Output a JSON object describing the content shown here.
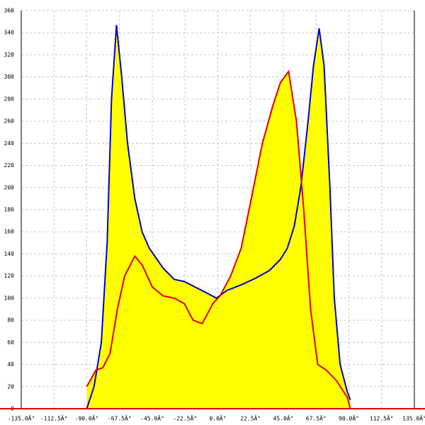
{
  "chart_data": {
    "type": "area",
    "xlim": [
      -135,
      135
    ],
    "ylim": [
      0,
      360
    ],
    "xticks": [
      {
        "value": -135,
        "label": "-135.0Â°"
      },
      {
        "value": -112.5,
        "label": "-112.5Â°"
      },
      {
        "value": -90,
        "label": "-90.0Â°"
      },
      {
        "value": -67.5,
        "label": "-67.5Â°"
      },
      {
        "value": -45,
        "label": "-45.0Â°"
      },
      {
        "value": -22.5,
        "label": "-22.5Â°"
      },
      {
        "value": 0,
        "label": "0.0Â°"
      },
      {
        "value": 22.5,
        "label": "22.5Â°"
      },
      {
        "value": 45,
        "label": "45.0Â°"
      },
      {
        "value": 67.5,
        "label": "67.5Â°"
      },
      {
        "value": 90,
        "label": "90.0Â°"
      },
      {
        "value": 112.5,
        "label": "112.5Â°"
      },
      {
        "value": 135,
        "label": "135.0Â°"
      }
    ],
    "yticks": [
      0,
      20,
      40,
      60,
      80,
      100,
      120,
      140,
      160,
      180,
      200,
      220,
      240,
      260,
      280,
      300,
      320,
      340,
      360
    ],
    "grid": true,
    "fill": "#ffff00",
    "series": [
      {
        "color": "#0000cc",
        "x": [
          -90,
          -85,
          -80,
          -76,
          -73,
          -69.6,
          -66,
          -62,
          -57,
          -52,
          -47,
          -37.5,
          -30,
          -23,
          -15.6,
          -8,
          -1,
          6.3,
          16,
          26,
          35.5,
          43,
          47.7,
          52.5,
          57,
          62,
          65.7,
          69.6,
          73,
          77,
          80,
          84,
          89,
          91
        ],
        "values": [
          0,
          20,
          60,
          150,
          280,
          347,
          300,
          240,
          190,
          160,
          145,
          127,
          117,
          115,
          110,
          105,
          100,
          107,
          112,
          118,
          125,
          135,
          145,
          165,
          200,
          260,
          310,
          344,
          310,
          200,
          100,
          40,
          15,
          8
        ]
      },
      {
        "color": "#e00000",
        "x": [
          -90,
          -83.7,
          -79,
          -74,
          -69,
          -64,
          -57,
          -52,
          -45,
          -37.5,
          -30,
          -23,
          -17,
          -10.7,
          -3.4,
          1.5,
          8.8,
          16,
          23,
          30.6,
          38,
          43,
          48.6,
          54,
          59,
          63.7,
          68.6,
          74.4,
          81.7,
          89,
          91
        ],
        "values": [
          20,
          35,
          37,
          50,
          90,
          120,
          138,
          130,
          110,
          102,
          100,
          95,
          80,
          77,
          95,
          102,
          120,
          145,
          190,
          240,
          275,
          295,
          305,
          260,
          180,
          90,
          40,
          35,
          25,
          10,
          0
        ]
      }
    ]
  }
}
